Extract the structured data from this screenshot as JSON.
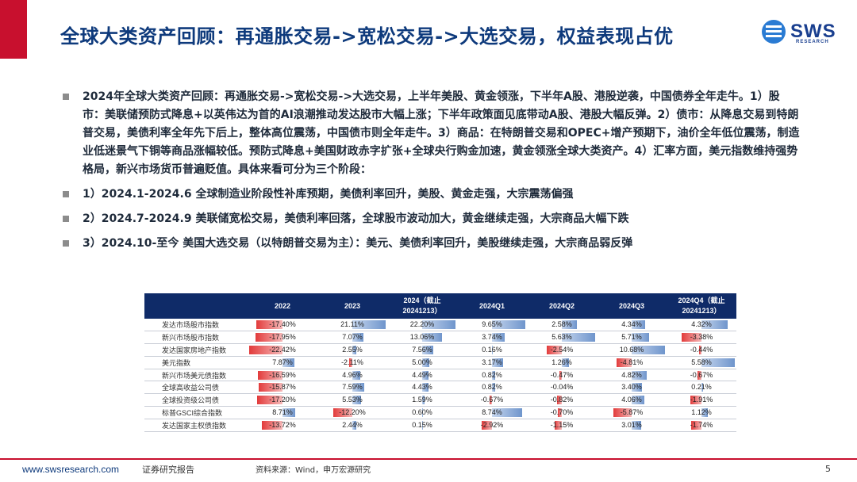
{
  "header": {
    "title": "全球大类资产回顾：再通胀交易->宽松交易->大选交易，权益表现占优",
    "logo_text": "SWS",
    "logo_sub": "RESEARCH"
  },
  "bullets": [
    "2024年全球大类资产回顾：再通胀交易->宽松交易->大选交易，上半年美股、黄金领涨，下半年A股、港股逆袭，中国债券全年走牛。1）股市：美联储预防式降息+以英伟达为首的AI浪潮推动发达股市大幅上涨；下半年政策面见底带动A股、港股大幅反弹。2）债市：从降息交易到特朗普交易，美债利率全年先下后上，整体高位震荡，中国债市则全年走牛。3）商品：在特朗普交易和OPEC+增产预期下，油价全年低位震荡，制造业低迷景气下铜等商品涨幅较低。预防式降息+美国财政赤字扩张+全球央行购金加速，黄金领涨全球大类资产。4）汇率方面，美元指数维持强势格局，新兴市场货币普遍贬值。具体来看可分为三个阶段：",
    "1）2024.1-2024.6  全球制造业阶段性补库预期，美债利率回升，美股、黄金走强，大宗震荡偏强",
    "2）2024.7-2024.9  美联储宽松交易，美债利率回落，全球股市波动加大，黄金继续走强，大宗商品大幅下跌",
    "3）2024.10-至今  美国大选交易（以特朗普交易为主）：美元、美债利率回升，美股继续走强，大宗商品弱反弹"
  ],
  "table": {
    "columns": [
      "",
      "2022",
      "2023",
      "2024（截止20241213）",
      "2024Q1",
      "2024Q2",
      "2024Q3",
      "2024Q4（截止20241213）"
    ],
    "rows": [
      {
        "name": "发达市场股市指数",
        "values": [
          "-17.40%",
          "21.11%",
          "22.20%",
          "9.65%",
          "2.58%",
          "4.34%",
          "4.32%"
        ]
      },
      {
        "name": "新兴市场股市指数",
        "values": [
          "-17.95%",
          "7.07%",
          "13.06%",
          "3.74%",
          "5.63%",
          "5.71%",
          "-3.38%"
        ]
      },
      {
        "name": "发达国家房地产指数",
        "values": [
          "-22.42%",
          "2.55%",
          "7.56%",
          "0.16%",
          "-2.54%",
          "10.68%",
          "-0.44%"
        ]
      },
      {
        "name": "美元指数",
        "values": [
          "7.87%",
          "-2.11%",
          "5.00%",
          "3.17%",
          "1.26%",
          "-4.81%",
          "5.58%"
        ]
      },
      {
        "name": "新兴市场美元债指数",
        "values": [
          "-16.59%",
          "4.96%",
          "4.49%",
          "0.82%",
          "-0.47%",
          "4.82%",
          "-0.67%"
        ]
      },
      {
        "name": "全球高收益公司债",
        "values": [
          "-15.87%",
          "7.59%",
          "4.43%",
          "0.82%",
          "-0.04%",
          "3.40%",
          "0.21%"
        ]
      },
      {
        "name": "全球投资级公司债",
        "values": [
          "-17.20%",
          "5.53%",
          "1.59%",
          "-0.67%",
          "-0.82%",
          "4.06%",
          "-1.91%"
        ]
      },
      {
        "name": "标普GSCI综合指数",
        "values": [
          "8.71%",
          "-12.20%",
          "0.60%",
          "8.74%",
          "-0.70%",
          "-5.87%",
          "1.12%"
        ]
      },
      {
        "name": "发达国家主权债指数",
        "values": [
          "-13.72%",
          "2.44%",
          "0.15%",
          "-2.92%",
          "-1.15%",
          "3.01%",
          "-1.74%"
        ]
      }
    ],
    "colors": {
      "positive": "#6f95cc",
      "negative": "#e23b3b",
      "header": "#0f2b68"
    }
  },
  "footer": {
    "url": "www.swsresearch.com",
    "doc_type": "证券研究报告",
    "source": "资料来源：Wind，申万宏源研究",
    "page": "5"
  }
}
